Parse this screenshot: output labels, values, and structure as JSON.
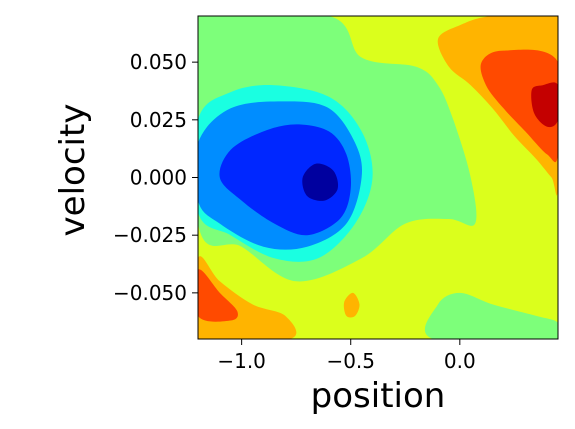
{
  "chart_data": {
    "type": "contour",
    "xlabel": "position",
    "ylabel": "velocity",
    "xlim": [
      -1.2,
      0.45
    ],
    "ylim": [
      -0.07,
      0.07
    ],
    "x_ticks": [
      {
        "value": -1.0,
        "label": "−1.0"
      },
      {
        "value": -0.5,
        "label": "−0.5"
      },
      {
        "value": 0.0,
        "label": "0.0"
      }
    ],
    "y_ticks": [
      {
        "value": 0.05,
        "label": "0.050"
      },
      {
        "value": 0.025,
        "label": "0.025"
      },
      {
        "value": 0.0,
        "label": "0.000"
      },
      {
        "value": -0.025,
        "label": "−0.025"
      },
      {
        "value": -0.05,
        "label": "−0.050"
      }
    ],
    "colormap": "jet",
    "level_colors": [
      "#00009f",
      "#0027ff",
      "#008dff",
      "#1affe1",
      "#7dff7a",
      "#dbff1c",
      "#ffb400",
      "#ff4a00",
      "#c40000"
    ],
    "background_level": 5,
    "regions": [
      {
        "level": 4,
        "polygon": [
          [
            -1.2,
            0.07
          ],
          [
            -0.6,
            0.07
          ],
          [
            -0.45,
            0.052
          ],
          [
            -0.2,
            0.048
          ],
          [
            -0.1,
            0.04
          ],
          [
            -0.03,
            0.025
          ],
          [
            0.05,
            0.0
          ],
          [
            0.07,
            -0.02
          ],
          [
            -0.05,
            -0.018
          ],
          [
            -0.25,
            -0.02
          ],
          [
            -0.45,
            -0.035
          ],
          [
            -0.75,
            -0.045
          ],
          [
            -1.0,
            -0.03
          ],
          [
            -1.2,
            -0.02
          ]
        ]
      },
      {
        "level": 4,
        "polygon": [
          [
            -0.12,
            -0.07
          ],
          [
            -0.1,
            -0.055
          ],
          [
            0.0,
            -0.05
          ],
          [
            0.15,
            -0.055
          ],
          [
            0.35,
            -0.06
          ],
          [
            0.45,
            -0.063
          ],
          [
            0.45,
            -0.07
          ]
        ]
      },
      {
        "level": 3,
        "polygon": [
          [
            -1.2,
            0.025
          ],
          [
            -1.05,
            0.037
          ],
          [
            -0.85,
            0.04
          ],
          [
            -0.6,
            0.035
          ],
          [
            -0.45,
            0.02
          ],
          [
            -0.4,
            0.0
          ],
          [
            -0.48,
            -0.02
          ],
          [
            -0.65,
            -0.035
          ],
          [
            -0.85,
            -0.035
          ],
          [
            -1.05,
            -0.025
          ],
          [
            -1.2,
            -0.015
          ]
        ]
      },
      {
        "level": 2,
        "polygon": [
          [
            -1.2,
            0.015
          ],
          [
            -1.05,
            0.03
          ],
          [
            -0.8,
            0.033
          ],
          [
            -0.6,
            0.03
          ],
          [
            -0.48,
            0.015
          ],
          [
            -0.45,
            0.0
          ],
          [
            -0.52,
            -0.02
          ],
          [
            -0.7,
            -0.03
          ],
          [
            -0.9,
            -0.03
          ],
          [
            -1.1,
            -0.02
          ],
          [
            -1.2,
            -0.01
          ]
        ]
      },
      {
        "level": 1,
        "polygon": [
          [
            -1.1,
            0.0
          ],
          [
            -1.05,
            0.012
          ],
          [
            -0.9,
            0.02
          ],
          [
            -0.75,
            0.023
          ],
          [
            -0.6,
            0.02
          ],
          [
            -0.52,
            0.01
          ],
          [
            -0.5,
            -0.005
          ],
          [
            -0.55,
            -0.018
          ],
          [
            -0.7,
            -0.025
          ],
          [
            -0.85,
            -0.02
          ],
          [
            -1.0,
            -0.01
          ]
        ]
      },
      {
        "level": 0,
        "polygon": [
          [
            -0.72,
            0.0
          ],
          [
            -0.66,
            0.006
          ],
          [
            -0.58,
            0.003
          ],
          [
            -0.56,
            -0.005
          ],
          [
            -0.62,
            -0.01
          ],
          [
            -0.7,
            -0.008
          ]
        ]
      },
      {
        "level": 6,
        "polygon": [
          [
            -0.1,
            0.06
          ],
          [
            0.0,
            0.066
          ],
          [
            0.15,
            0.07
          ],
          [
            0.45,
            0.07
          ],
          [
            0.45,
            -0.003
          ],
          [
            0.42,
            0.0
          ],
          [
            0.35,
            0.008
          ],
          [
            0.25,
            0.018
          ],
          [
            0.15,
            0.03
          ],
          [
            0.05,
            0.04
          ],
          [
            -0.05,
            0.048
          ]
        ]
      },
      {
        "level": 7,
        "polygon": [
          [
            0.1,
            0.05
          ],
          [
            0.2,
            0.055
          ],
          [
            0.45,
            0.05
          ],
          [
            0.45,
            0.01
          ],
          [
            0.4,
            0.01
          ],
          [
            0.3,
            0.02
          ],
          [
            0.2,
            0.03
          ],
          [
            0.12,
            0.04
          ]
        ]
      },
      {
        "level": 8,
        "polygon": [
          [
            0.33,
            0.038
          ],
          [
            0.38,
            0.04
          ],
          [
            0.45,
            0.04
          ],
          [
            0.45,
            0.025
          ],
          [
            0.4,
            0.022
          ],
          [
            0.34,
            0.028
          ]
        ]
      },
      {
        "level": 6,
        "polygon": [
          [
            -1.2,
            -0.035
          ],
          [
            -1.1,
            -0.045
          ],
          [
            -0.95,
            -0.055
          ],
          [
            -0.8,
            -0.06
          ],
          [
            -0.78,
            -0.07
          ],
          [
            -1.2,
            -0.07
          ]
        ]
      },
      {
        "level": 7,
        "polygon": [
          [
            -1.2,
            -0.04
          ],
          [
            -1.1,
            -0.05
          ],
          [
            -1.02,
            -0.058
          ],
          [
            -1.05,
            -0.062
          ],
          [
            -1.2,
            -0.06
          ]
        ]
      },
      {
        "level": 6,
        "polygon": [
          [
            -0.53,
            -0.054
          ],
          [
            -0.49,
            -0.05
          ],
          [
            -0.46,
            -0.055
          ],
          [
            -0.48,
            -0.06
          ],
          [
            -0.52,
            -0.06
          ]
        ]
      }
    ]
  }
}
